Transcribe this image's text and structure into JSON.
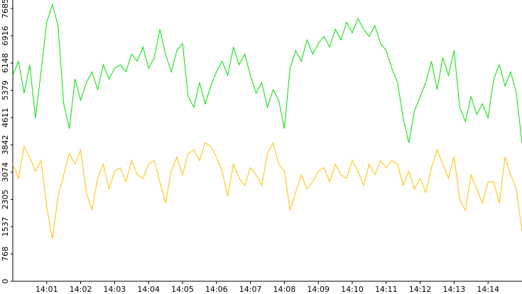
{
  "chart_data": {
    "type": "line",
    "categories": [
      null,
      null,
      null,
      null,
      null,
      null,
      "14:01",
      null,
      null,
      null,
      null,
      null,
      "14:02",
      null,
      null,
      null,
      null,
      null,
      "14:03",
      null,
      null,
      null,
      null,
      null,
      "14:04",
      null,
      null,
      null,
      null,
      null,
      "14:05",
      null,
      null,
      null,
      null,
      null,
      "14:06",
      null,
      null,
      null,
      null,
      null,
      "14:07",
      null,
      null,
      null,
      null,
      null,
      "14:08",
      null,
      null,
      null,
      null,
      null,
      "14:09",
      null,
      null,
      null,
      null,
      null,
      "14:10",
      null,
      null,
      null,
      null,
      null,
      "14:11",
      null,
      null,
      null,
      null,
      null,
      "14:12",
      null,
      null,
      null,
      null,
      null,
      "14:13",
      null,
      null,
      null,
      null,
      null,
      "14:14",
      null,
      null,
      null,
      null,
      null,
      null
    ],
    "series": [
      {
        "color": "#00e000",
        "values": [
          5800,
          6200,
          5300,
          6100,
          4600,
          5900,
          7300,
          7800,
          7200,
          5000,
          4300,
          5700,
          5100,
          5600,
          5900,
          5400,
          6100,
          5700,
          6000,
          6100,
          5900,
          6400,
          6200,
          6600,
          6000,
          6300,
          7100,
          6400,
          5900,
          6500,
          6700,
          5200,
          4900,
          5600,
          5000,
          5500,
          5900,
          6200,
          5800,
          6600,
          6100,
          6400,
          5800,
          5300,
          5600,
          4900,
          5400,
          5100,
          4300,
          6000,
          6500,
          6200,
          6800,
          6400,
          6700,
          6900,
          6600,
          7100,
          6800,
          7300,
          7000,
          7400,
          7100,
          6900,
          7200,
          6700,
          6500,
          6000,
          5600,
          4600,
          3900,
          4800,
          5200,
          5600,
          6200,
          5400,
          6300,
          5800,
          6500,
          4900,
          4500,
          5200,
          4700,
          5000,
          4600,
          5700,
          6100,
          5500,
          5900,
          5300,
          3900
        ]
      },
      {
        "color": "#ffc000",
        "values": [
          3300,
          2900,
          3800,
          3500,
          3100,
          3400,
          2100,
          1200,
          2400,
          3000,
          3600,
          3300,
          3700,
          2500,
          2000,
          2900,
          3300,
          2600,
          3100,
          3200,
          2800,
          3400,
          3000,
          2900,
          3300,
          3400,
          2800,
          2200,
          3100,
          3500,
          3000,
          3600,
          3700,
          3400,
          3900,
          3800,
          3500,
          3100,
          2400,
          3300,
          2900,
          2700,
          3200,
          3000,
          2700,
          3600,
          3900,
          3300,
          3100,
          2000,
          2500,
          3000,
          2600,
          2800,
          3100,
          3200,
          2800,
          3300,
          3000,
          2900,
          3400,
          3100,
          2700,
          3300,
          3000,
          3400,
          3200,
          3400,
          3300,
          2700,
          3100,
          2600,
          2900,
          2500,
          3200,
          3700,
          3300,
          2900,
          3500,
          2300,
          2000,
          3000,
          2600,
          2200,
          2800,
          2800,
          2200,
          3500,
          3000,
          2600,
          1400
        ]
      }
    ],
    "ylim": [
      0,
      7925
    ],
    "yticks": [
      0,
      768,
      1537,
      2305,
      3074,
      3842,
      4611,
      5379,
      6148,
      6916,
      7685
    ]
  }
}
